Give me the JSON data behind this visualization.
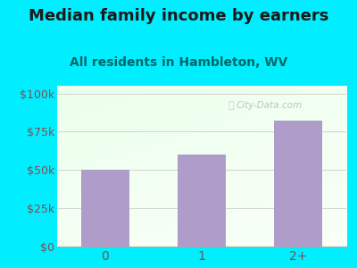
{
  "title": "Median family income by earners",
  "subtitle": "All residents in Hambleton, WV",
  "categories": [
    "0",
    "1",
    "2+"
  ],
  "values": [
    50000,
    60000,
    82000
  ],
  "bar_color": "#b09cc8",
  "outer_bg": "#00eeff",
  "title_color": "#1a1a1a",
  "subtitle_color": "#006666",
  "axis_label_color": "#7a5050",
  "yticks": [
    0,
    25000,
    50000,
    75000,
    100000
  ],
  "ytick_labels": [
    "$0",
    "$25k",
    "$50k",
    "$75k",
    "$100k"
  ],
  "ylim": [
    0,
    105000
  ],
  "watermark": "City-Data.com",
  "title_fontsize": 13,
  "subtitle_fontsize": 10
}
